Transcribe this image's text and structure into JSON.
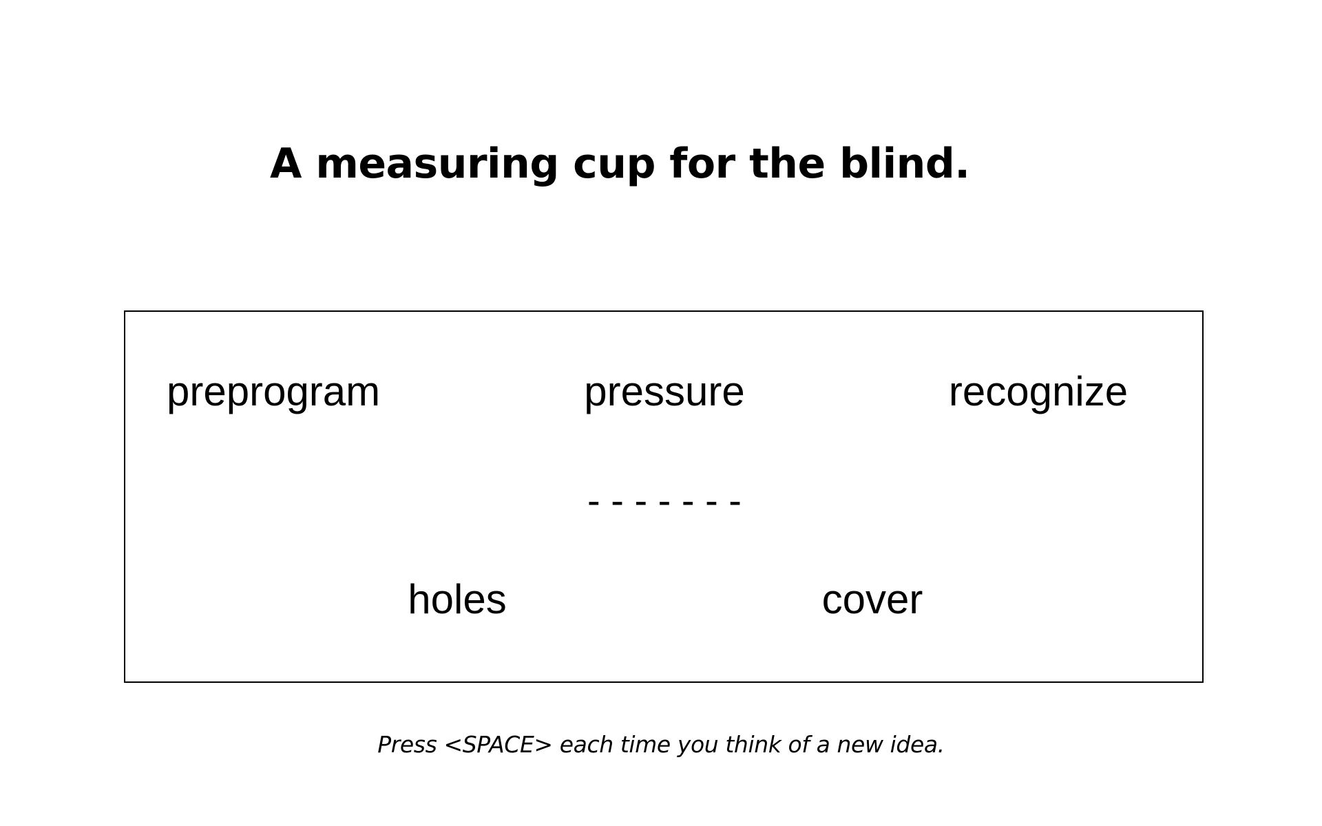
{
  "prompt": {
    "title": "A measuring cup for the blind."
  },
  "words": {
    "top": [
      "preprogram",
      "pressure",
      "recognize"
    ],
    "bottom": [
      "holes",
      "cover"
    ]
  },
  "blanks": "-  -  -  -  -  -  -",
  "instruction": "Press <SPACE> each time you think of a new idea."
}
